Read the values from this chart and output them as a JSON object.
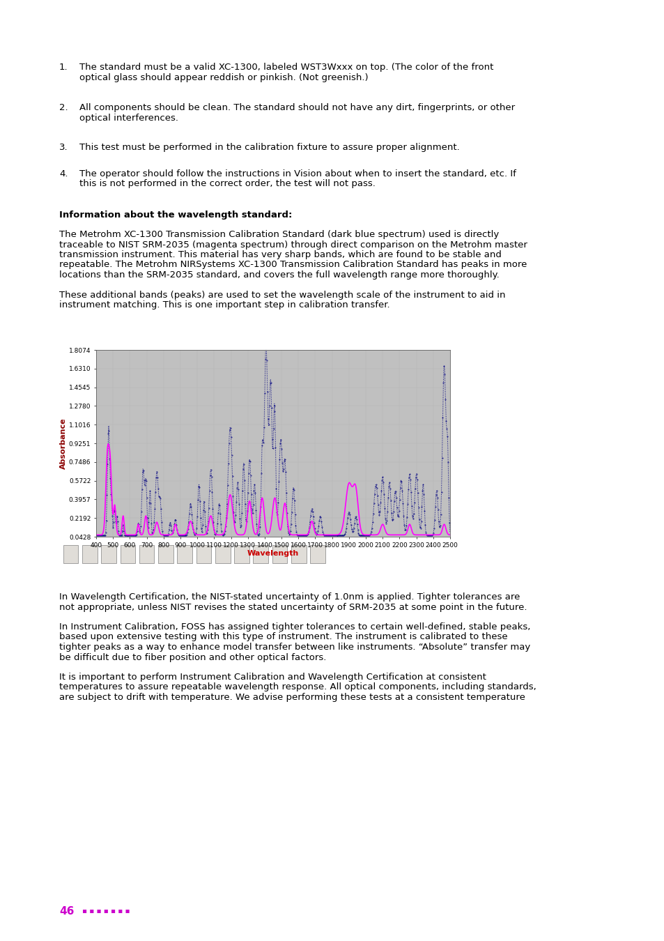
{
  "xlabel": "Wavelength",
  "ylabel": "Absorbance",
  "ylabel_color": "#8B0000",
  "xlabel_color": "#CC0000",
  "plot_bg_color": "#C0C0C0",
  "toolbar_bg": "#D4D0C8",
  "blue_color": "#000080",
  "magenta_color": "#FF00FF",
  "x_min": 400,
  "x_max": 2500,
  "y_min": 0.0428,
  "y_max": 1.8074,
  "yticks": [
    0.0428,
    0.2192,
    0.3957,
    0.5722,
    0.7486,
    0.9251,
    1.1016,
    1.278,
    1.4545,
    1.631,
    1.8074
  ],
  "xticks": [
    400,
    500,
    600,
    700,
    800,
    900,
    1000,
    1100,
    1200,
    1300,
    1400,
    1500,
    1600,
    1700,
    1800,
    1900,
    2000,
    2100,
    2200,
    2300,
    2400,
    2500
  ],
  "item1": "The standard must be a valid XC-1300, labeled WST3Wxxx on top. (The color of the front\noptical glass should appear reddish or pinkish. (Not greenish.)",
  "item2": "All components should be clean. The standard should not have any dirt, fingerprints, or other\noptical interferences.",
  "item3": "This test must be performed in the calibration fixture to assure proper alignment.",
  "item4": "The operator should follow the instructions in Vision about when to insert the standard, etc. If\nthis is not performed in the correct order, the test will not pass.",
  "heading": "Information about the wavelength standard:",
  "para1": "The Metrohm XC-1300 Transmission Calibration Standard (dark blue spectrum) used is directly\ntraceable to NIST SRM-2035 (magenta spectrum) through direct comparison on the Metrohm master\ntransmission instrument. This material has very sharp bands, which are found to be stable and\nrepeatable. The Metrohm NIRSystems XC-1300 Transmission Calibration Standard has peaks in more\nlocations than the SRM-2035 standard, and covers the full wavelength range more thoroughly.",
  "para2": "These additional bands (peaks) are used to set the wavelength scale of the instrument to aid in\ninstrument matching. This is one important step in calibration transfer.",
  "para3": "In Wavelength Certification, the NIST-stated uncertainty of 1.0nm is applied. Tighter tolerances are\nnot appropriate, unless NIST revises the stated uncertainty of SRM-2035 at some point in the future.",
  "para4": "In Instrument Calibration, FOSS has assigned tighter tolerances to certain well-defined, stable peaks,\nbased upon extensive testing with this type of instrument. The instrument is calibrated to these\ntighter peaks as a way to enhance model transfer between like instruments. “Absolute” transfer may\nbe difficult due to fiber position and other optical factors.",
  "para5": "It is important to perform Instrument Calibration and Wavelength Certification at consistent\ntemperatures to assure repeatable wavelength response. All optical components, including standards,\nare subject to drift with temperature. We advise performing these tests at a consistent temperature",
  "page_num": "46",
  "dots": "▪ ▪ ▪ ▪ ▪ ▪ ▪"
}
